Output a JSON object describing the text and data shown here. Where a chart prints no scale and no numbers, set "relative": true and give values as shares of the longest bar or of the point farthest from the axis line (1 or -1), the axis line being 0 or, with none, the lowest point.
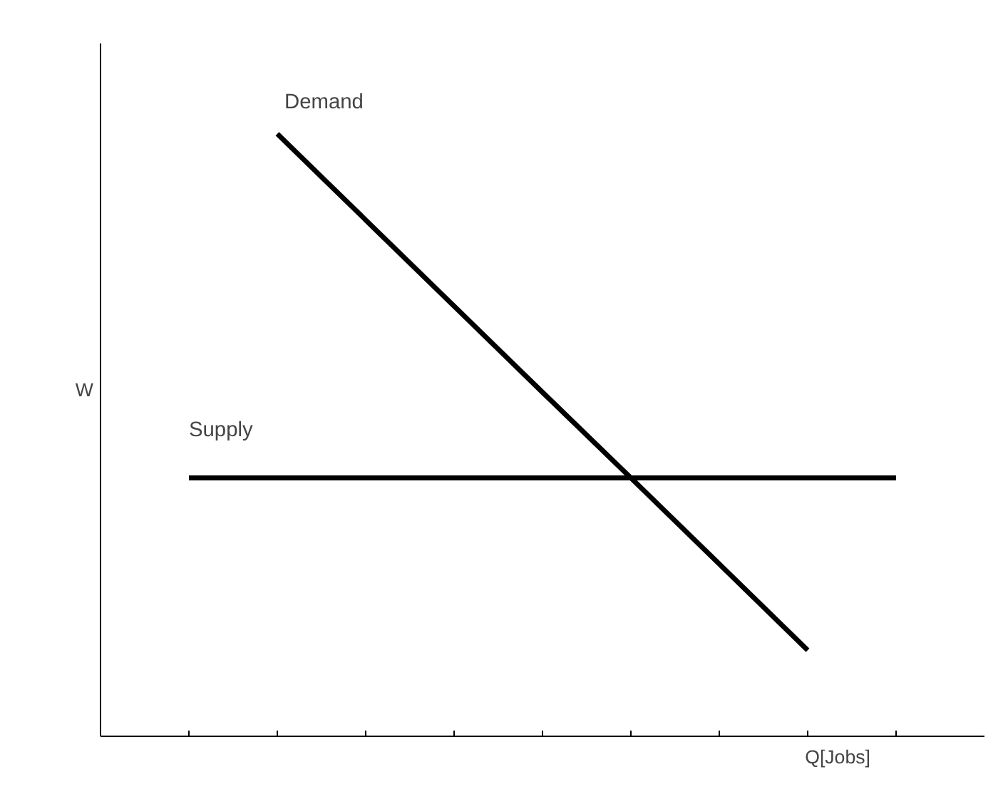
{
  "chart_data": {
    "type": "line",
    "relative": true,
    "xlabel": "Q[Jobs]",
    "ylabel": "W",
    "legend": false,
    "grid": false,
    "marker": "none",
    "line_style": "solid",
    "categories": [
      null,
      null,
      null,
      null,
      null,
      null,
      null,
      null,
      null
    ],
    "series": [
      {
        "name": "Demand",
        "color": "#000000",
        "values": [
          null,
          1,
          0.857,
          0.714,
          0.571,
          0.429,
          0.286,
          0.143,
          null
        ]
      },
      {
        "name": "Supply",
        "color": "#000000",
        "values": [
          0.429,
          0.429,
          0.429,
          0.429,
          0.429,
          0.429,
          0.429,
          0.429,
          0.429
        ]
      }
    ]
  }
}
